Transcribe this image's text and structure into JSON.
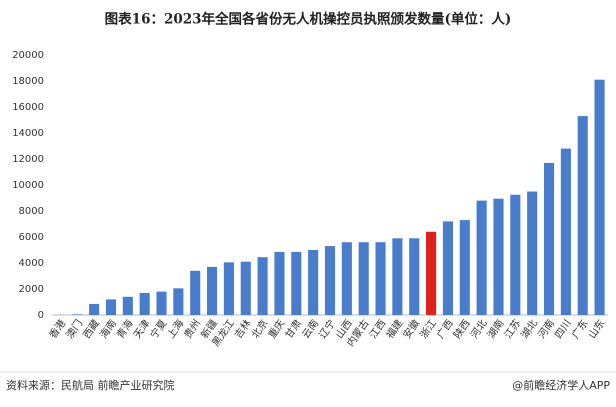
{
  "chart_data": {
    "type": "bar",
    "title": "图表16：2023年全国各省份无人机操控员执照颁发数量(单位：人)",
    "categories": [
      "香港",
      "澳门",
      "西藏",
      "海南",
      "青海",
      "天津",
      "宁夏",
      "上海",
      "贵州",
      "新疆",
      "黑龙江",
      "吉林",
      "北京",
      "重庆",
      "甘肃",
      "云南",
      "辽宁",
      "山西",
      "内蒙古",
      "江西",
      "福建",
      "安徽",
      "浙江",
      "广西",
      "陕西",
      "河北",
      "湖南",
      "江苏",
      "湖北",
      "河南",
      "四川",
      "广东",
      "山东"
    ],
    "values": [
      10,
      50,
      850,
      1200,
      1400,
      1700,
      1800,
      2050,
      3400,
      3700,
      4050,
      4100,
      4450,
      4850,
      4850,
      5000,
      5300,
      5600,
      5600,
      5600,
      5900,
      5900,
      6400,
      7200,
      7300,
      8800,
      8950,
      9250,
      9500,
      11700,
      12800,
      15300,
      18100
    ],
    "colors": [
      "#4a7ccc",
      "#4a7ccc",
      "#4a7ccc",
      "#4a7ccc",
      "#4a7ccc",
      "#4a7ccc",
      "#4a7ccc",
      "#4a7ccc",
      "#4a7ccc",
      "#4a7ccc",
      "#4a7ccc",
      "#4a7ccc",
      "#4a7ccc",
      "#4a7ccc",
      "#4a7ccc",
      "#4a7ccc",
      "#4a7ccc",
      "#4a7ccc",
      "#4a7ccc",
      "#4a7ccc",
      "#4a7ccc",
      "#4a7ccc",
      "#e0201b",
      "#4a7ccc",
      "#4a7ccc",
      "#4a7ccc",
      "#4a7ccc",
      "#4a7ccc",
      "#4a7ccc",
      "#4a7ccc",
      "#4a7ccc",
      "#4a7ccc",
      "#4a7ccc"
    ],
    "ylim": [
      0,
      20000
    ],
    "yticks": [
      0,
      2000,
      4000,
      6000,
      8000,
      10000,
      12000,
      14000,
      16000,
      18000,
      20000
    ],
    "grid": false,
    "source": "资料来源：民航局 前瞻产业研究院",
    "credit": "@前瞻经济学人APP"
  }
}
